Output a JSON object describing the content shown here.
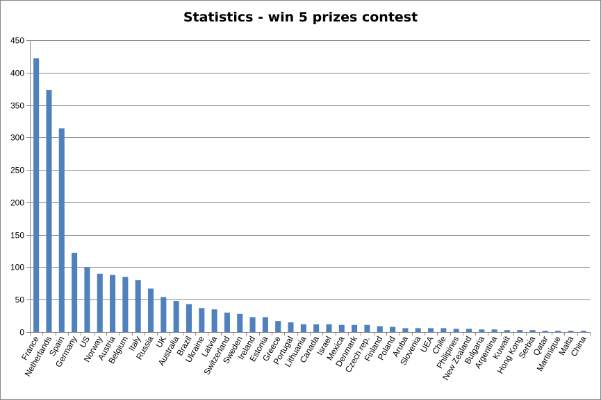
{
  "chart_data": {
    "type": "bar",
    "title": "Statistics - win 5 prizes contest",
    "xlabel": "",
    "ylabel": "",
    "ylim": [
      0,
      450
    ],
    "yticks": [
      0,
      50,
      100,
      150,
      200,
      250,
      300,
      350,
      400,
      450
    ],
    "grid": true,
    "legend": "none",
    "bar_color": "#4f81bd",
    "categories": [
      "France",
      "Netherlands",
      "Spain",
      "Germany",
      "US",
      "Norway",
      "Austria",
      "Belgium",
      "Italy",
      "Russia",
      "UK",
      "Australia",
      "Brazil",
      "Ukraine",
      "Latvia",
      "Switzerland",
      "Sweden",
      "Ireland",
      "Estonia",
      "Greece",
      "Portugal",
      "Lithuania",
      "Canada",
      "Israel",
      "Mexica",
      "Denmark",
      "Czech rep.",
      "Finland",
      "Poland",
      "Aruba",
      "Slovenia",
      "UEA",
      "Chile",
      "Philipines",
      "New Zealand",
      "Bulgaria",
      "Argentina",
      "Kuwait",
      "Hong Kong",
      "Serbia",
      "Qatar",
      "Martinique",
      "Malta",
      "China"
    ],
    "values": [
      422,
      373,
      314,
      122,
      100,
      90,
      88,
      85,
      80,
      67,
      54,
      48,
      43,
      37,
      35,
      30,
      28,
      23,
      23,
      17,
      15,
      12,
      12,
      12,
      11,
      11,
      11,
      9,
      8,
      6,
      6,
      6,
      6,
      5,
      5,
      4,
      4,
      3,
      3,
      3,
      2,
      2,
      2,
      2
    ]
  }
}
